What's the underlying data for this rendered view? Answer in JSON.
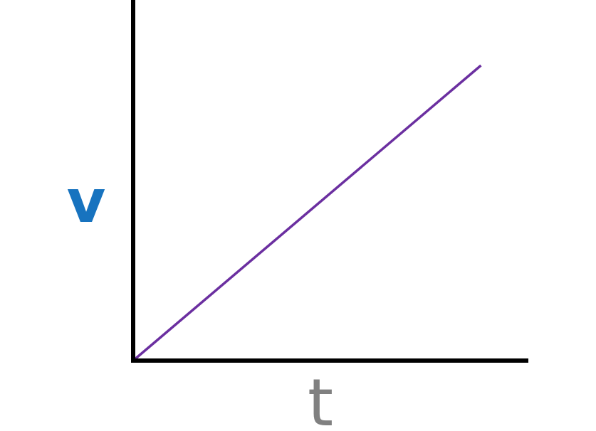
{
  "chart_data": {
    "type": "line",
    "title": "",
    "xlabel": "t",
    "ylabel": "v",
    "xlim": [
      0,
      1
    ],
    "ylim": [
      0,
      1
    ],
    "grid": false,
    "series": [
      {
        "x": [
          0,
          0.88
        ],
        "y": [
          0,
          0.83
        ]
      }
    ]
  },
  "colors": {
    "axis": "#000000",
    "line": "#6b2fa0",
    "ylabel": "#1773bf",
    "xlabel": "#808080"
  }
}
